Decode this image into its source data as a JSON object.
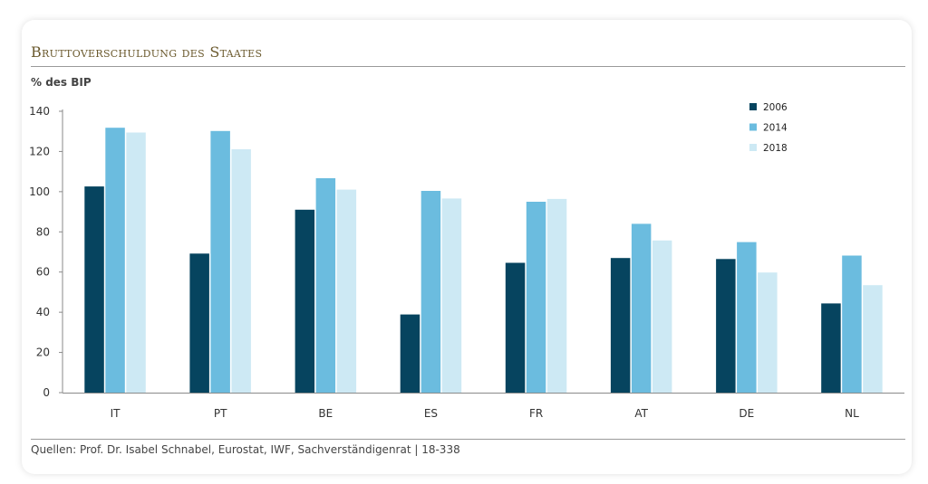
{
  "header": {
    "title": "Bruttoverschuldung des Staates",
    "unit_label": "% des BIP"
  },
  "footer": {
    "source": "Quellen: Prof. Dr. Isabel Schnabel, Eurostat, IWF, Sachverständigenrat | 18-338"
  },
  "colors": {
    "2006": "#06445f",
    "2014": "#6bbcdf",
    "2018": "#cde9f4"
  },
  "chart_data": {
    "type": "bar",
    "title": "Bruttoverschuldung des Staates",
    "ylabel": "% des BIP",
    "xlabel": "",
    "categories": [
      "IT",
      "PT",
      "BE",
      "ES",
      "FR",
      "AT",
      "DE",
      "NL"
    ],
    "series": [
      {
        "name": "2006",
        "values": [
          102.6,
          69.2,
          91.0,
          38.9,
          64.6,
          67.0,
          66.5,
          44.4
        ]
      },
      {
        "name": "2014",
        "values": [
          131.8,
          130.2,
          106.7,
          100.4,
          95.0,
          84.0,
          74.9,
          68.2
        ]
      },
      {
        "name": "2018",
        "values": [
          129.4,
          121.1,
          101.0,
          96.6,
          96.4,
          75.7,
          59.8,
          53.5
        ]
      }
    ],
    "ylim": [
      0,
      140
    ],
    "yticks": [
      0,
      20,
      40,
      60,
      80,
      100,
      120,
      140
    ],
    "grid": false,
    "legend_position": "top-right"
  }
}
